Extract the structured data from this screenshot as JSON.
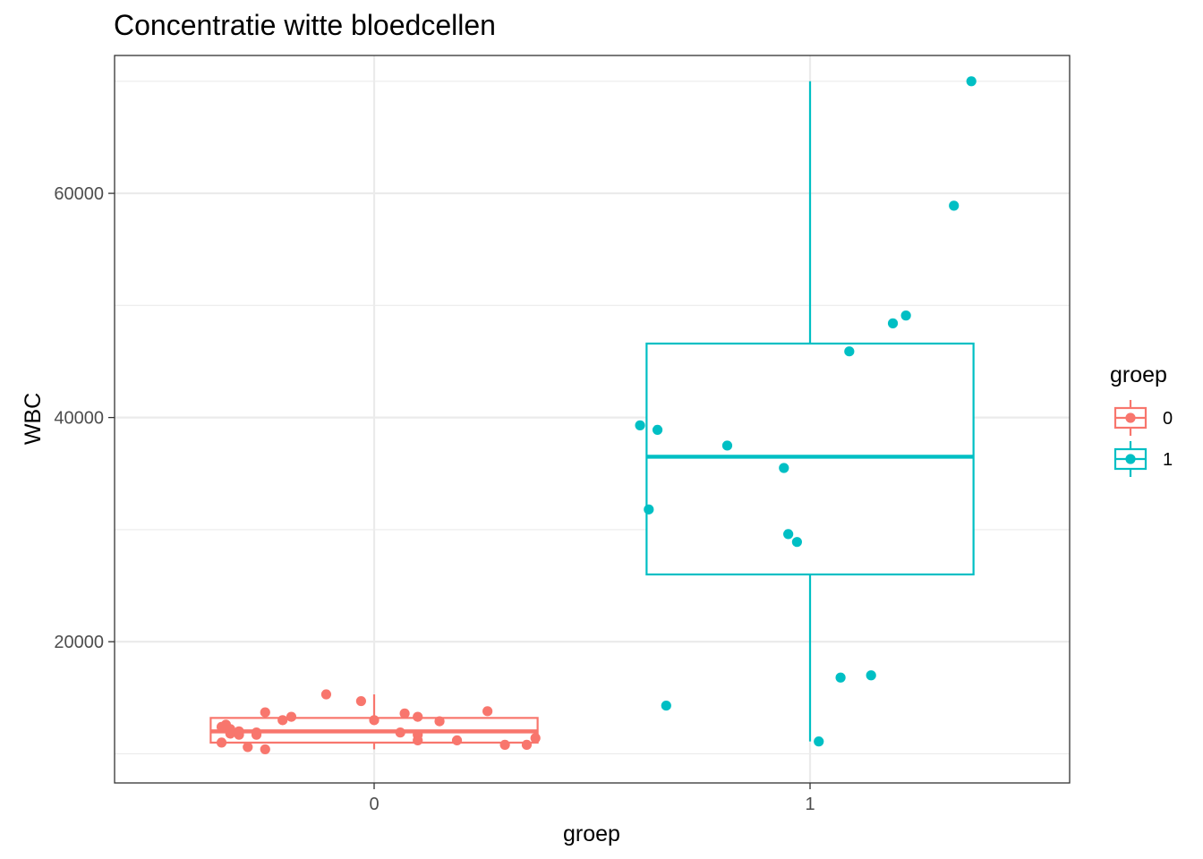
{
  "chart_data": {
    "type": "boxplot",
    "title": "Concentratie witte bloedcellen",
    "xlabel": "groep",
    "ylabel": "WBC",
    "categories": [
      "0",
      "1"
    ],
    "y_ticks": [
      20000,
      40000,
      60000
    ],
    "y_tick_labels": [
      "20000",
      "40000",
      "60000"
    ],
    "ylim": [
      7400,
      72300
    ],
    "grid": true,
    "legend": {
      "title": "groep",
      "position": "right",
      "entries": [
        {
          "label": "0",
          "color": "#F8766D"
        },
        {
          "label": "1",
          "color": "#00BFC4"
        }
      ]
    },
    "boxes": [
      {
        "group": "0",
        "color": "#F8766D",
        "min": 10400,
        "q1": 11000,
        "median": 12000,
        "q3": 13200,
        "max": 15300
      },
      {
        "group": "1",
        "color": "#00BFC4",
        "min": 11100,
        "q1": 26000,
        "median": 36500,
        "q3": 46600,
        "max": 70000
      }
    ],
    "points": [
      {
        "group": "0",
        "x": -0.35,
        "y": 11000
      },
      {
        "group": "0",
        "x": -0.35,
        "y": 12400
      },
      {
        "group": "0",
        "x": -0.34,
        "y": 12600
      },
      {
        "group": "0",
        "x": -0.33,
        "y": 12200
      },
      {
        "group": "0",
        "x": -0.33,
        "y": 11800
      },
      {
        "group": "0",
        "x": -0.31,
        "y": 11700
      },
      {
        "group": "0",
        "x": -0.31,
        "y": 12000
      },
      {
        "group": "0",
        "x": -0.29,
        "y": 10600
      },
      {
        "group": "0",
        "x": -0.27,
        "y": 11800
      },
      {
        "group": "0",
        "x": -0.27,
        "y": 11900
      },
      {
        "group": "0",
        "x": -0.27,
        "y": 11700
      },
      {
        "group": "0",
        "x": -0.25,
        "y": 10400
      },
      {
        "group": "0",
        "x": -0.25,
        "y": 13700
      },
      {
        "group": "0",
        "x": -0.21,
        "y": 13000
      },
      {
        "group": "0",
        "x": -0.19,
        "y": 13300
      },
      {
        "group": "0",
        "x": -0.11,
        "y": 15300
      },
      {
        "group": "0",
        "x": -0.03,
        "y": 14700
      },
      {
        "group": "0",
        "x": 0.0,
        "y": 13000
      },
      {
        "group": "0",
        "x": 0.06,
        "y": 11900
      },
      {
        "group": "0",
        "x": 0.07,
        "y": 13600
      },
      {
        "group": "0",
        "x": 0.1,
        "y": 13300
      },
      {
        "group": "0",
        "x": 0.1,
        "y": 11200
      },
      {
        "group": "0",
        "x": 0.1,
        "y": 11700
      },
      {
        "group": "0",
        "x": 0.15,
        "y": 12900
      },
      {
        "group": "0",
        "x": 0.19,
        "y": 11200
      },
      {
        "group": "0",
        "x": 0.26,
        "y": 13800
      },
      {
        "group": "0",
        "x": 0.3,
        "y": 10800
      },
      {
        "group": "0",
        "x": 0.35,
        "y": 10800
      },
      {
        "group": "0",
        "x": 0.37,
        "y": 11400
      },
      {
        "group": "1",
        "x": 0.61,
        "y": 39300
      },
      {
        "group": "1",
        "x": 0.63,
        "y": 31800
      },
      {
        "group": "1",
        "x": 0.65,
        "y": 38900
      },
      {
        "group": "1",
        "x": 0.67,
        "y": 14300
      },
      {
        "group": "1",
        "x": 0.81,
        "y": 37500
      },
      {
        "group": "1",
        "x": 0.94,
        "y": 35500
      },
      {
        "group": "1",
        "x": 0.95,
        "y": 29600
      },
      {
        "group": "1",
        "x": 0.97,
        "y": 28900
      },
      {
        "group": "1",
        "x": 1.02,
        "y": 11100
      },
      {
        "group": "1",
        "x": 1.07,
        "y": 16800
      },
      {
        "group": "1",
        "x": 1.09,
        "y": 45900
      },
      {
        "group": "1",
        "x": 1.14,
        "y": 17000
      },
      {
        "group": "1",
        "x": 1.19,
        "y": 48400
      },
      {
        "group": "1",
        "x": 1.22,
        "y": 49100
      },
      {
        "group": "1",
        "x": 1.33,
        "y": 58900
      },
      {
        "group": "1",
        "x": 1.37,
        "y": 70000
      }
    ]
  }
}
